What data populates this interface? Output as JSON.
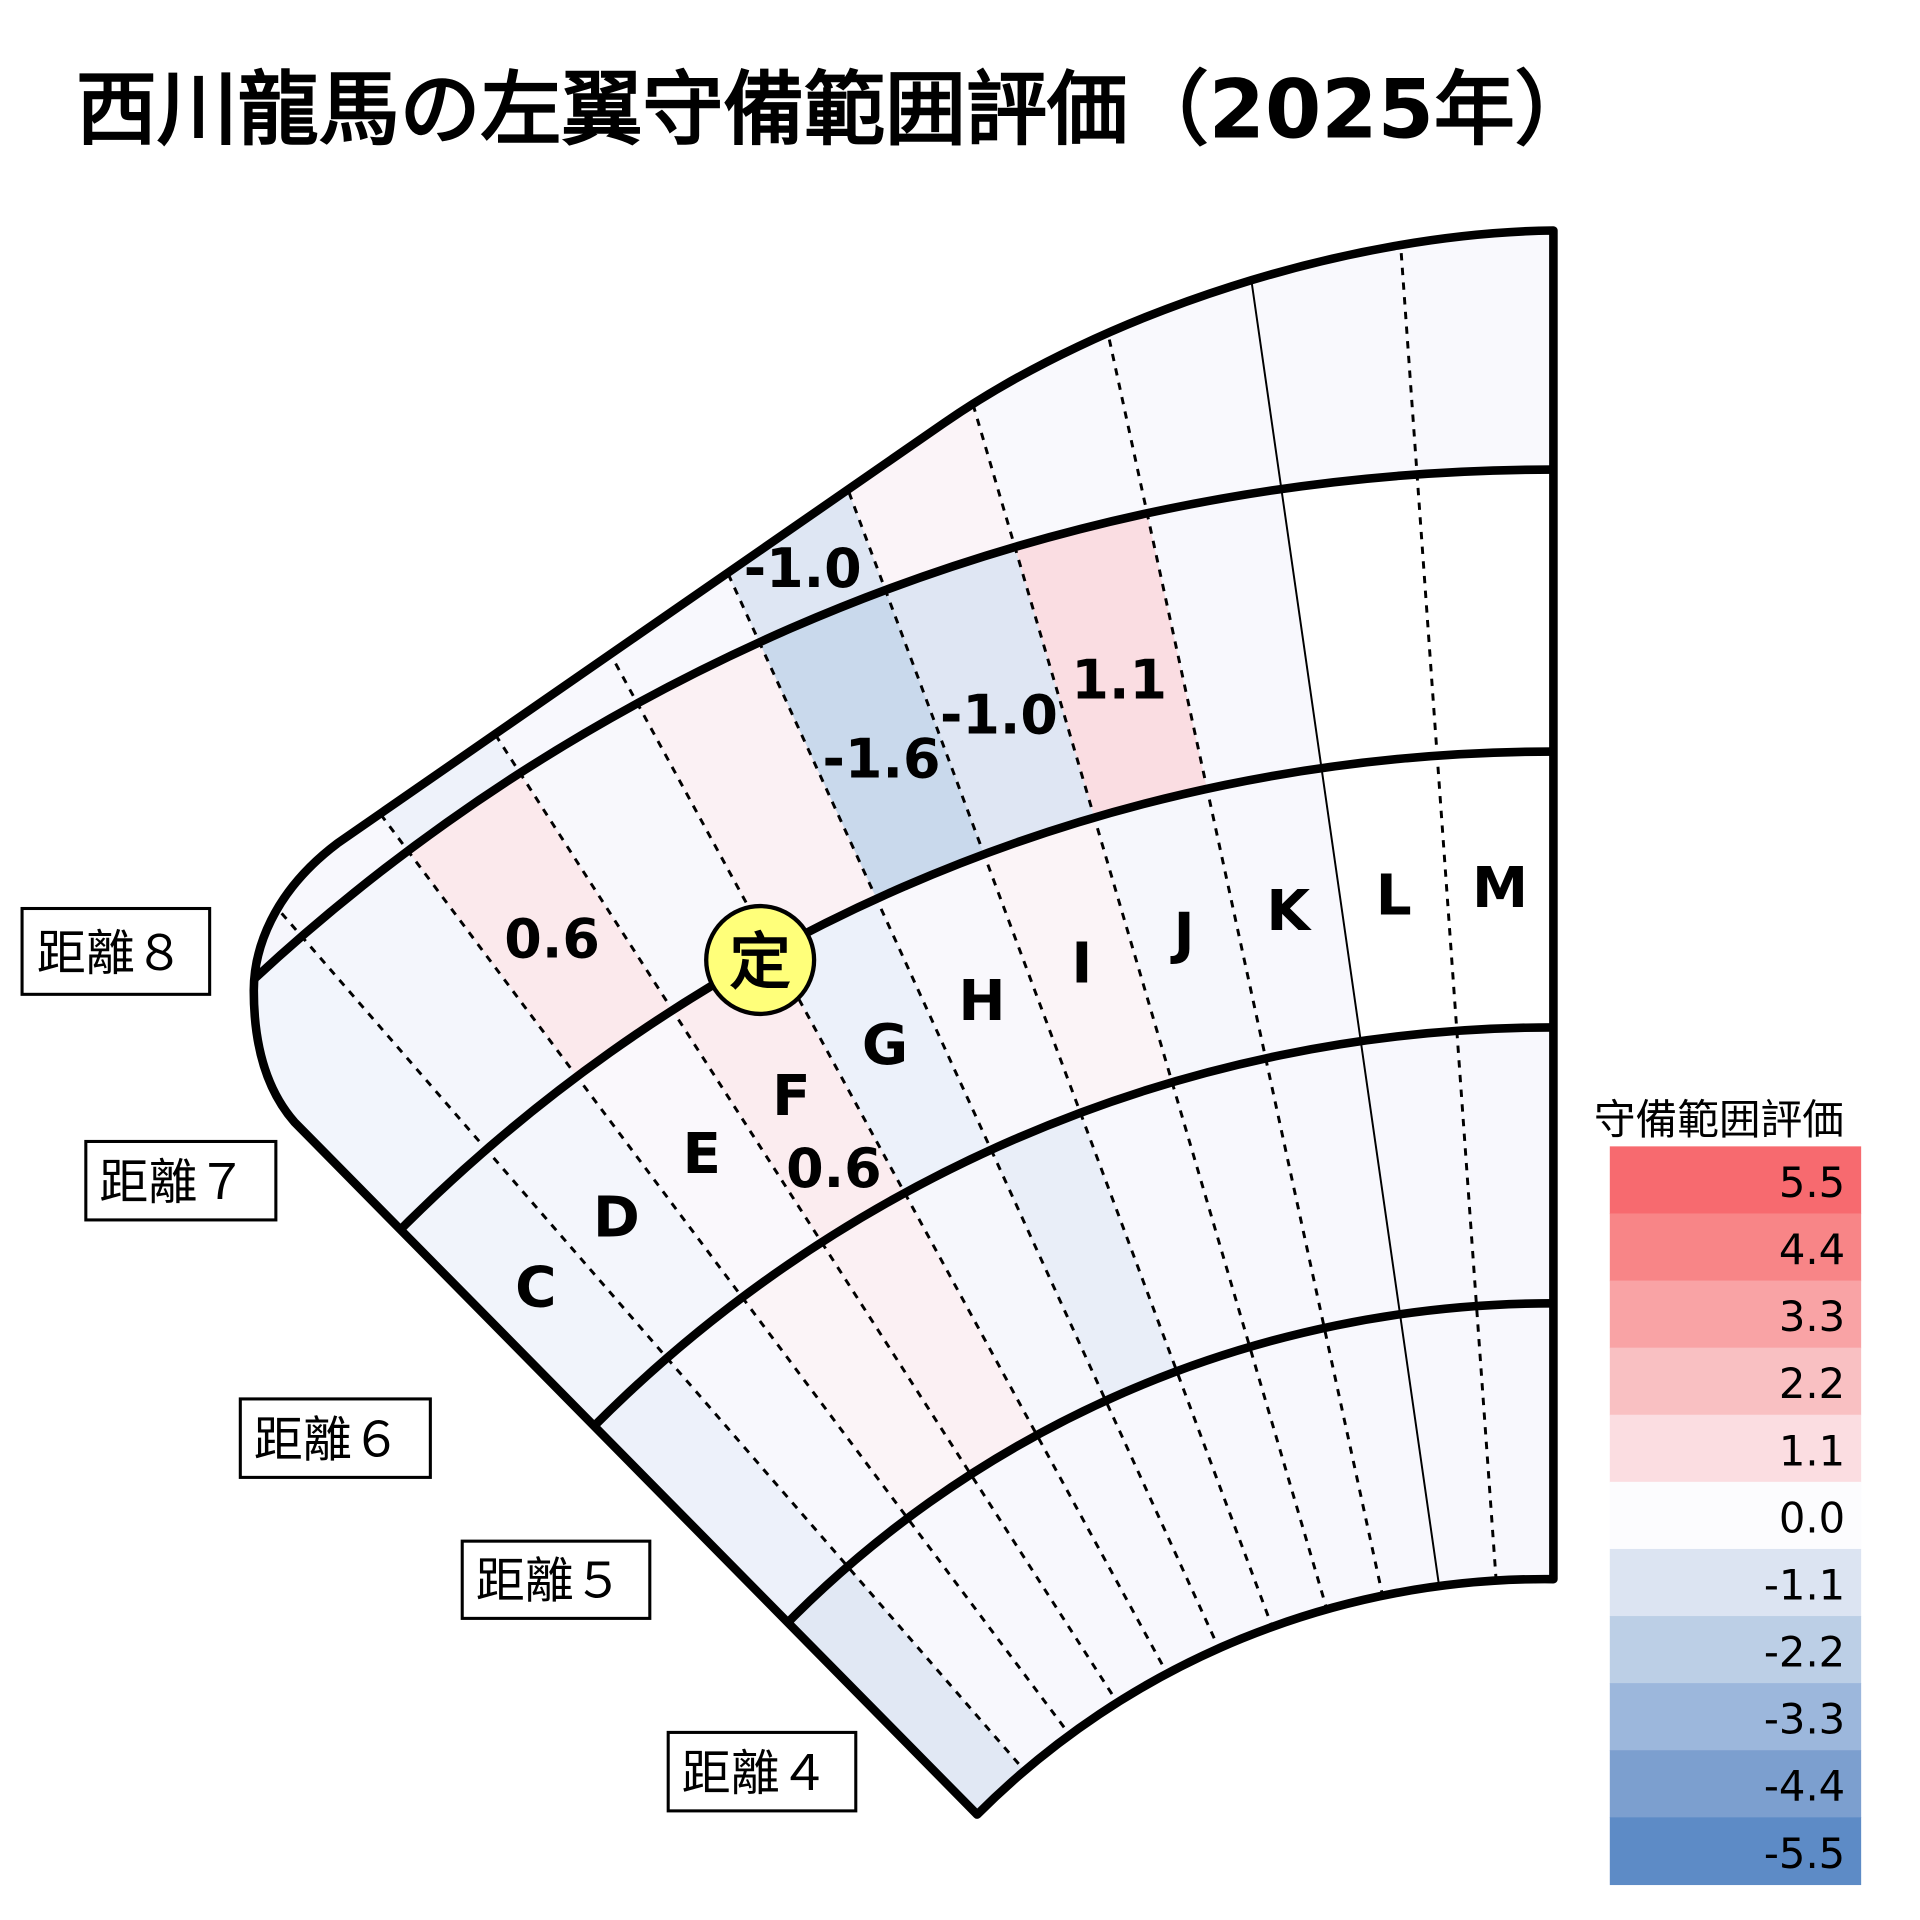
{
  "title": "西川龍馬の左翼守備範囲評価（2025年）",
  "columns": [
    "C",
    "D",
    "E",
    "F",
    "G",
    "H",
    "I",
    "J",
    "K",
    "L",
    "M"
  ],
  "distance_labels": [
    "距離４",
    "距離５",
    "距離６",
    "距離７",
    "距離８"
  ],
  "cell_colors": [
    [
      "#e1e8f4",
      "#f8f8fd",
      "#f8f8fd",
      "#f8f8fd",
      "#f8f8fd",
      "#f8f8fd",
      "#f8f8fd",
      "#f8f8fd",
      "#f8f8fd",
      "#f8f8fd",
      "#f8f8fd"
    ],
    [
      "#edf1fa",
      "#f8f8fd",
      "#fbf4f7",
      "#fbf0f3",
      "#f6f7fc",
      "#e9eef8",
      "#f8f8fd",
      "#f8f8fd",
      "#f8f8fd",
      "#f8f8fd",
      "#f8f8fd"
    ],
    [
      "#f1f4fb",
      "#f4f6fc",
      "#faf8fc",
      "#fbecef",
      "#ecf1fa",
      "#f9f8fc",
      "#fbf4f7",
      "#f6f7fc",
      "#f8f8fd",
      "#ffffff",
      "#ffffff"
    ],
    [
      "#f2f5fc",
      "#f4f6fc",
      "#fbe9ec",
      "#f8f8fc",
      "#fbf1f4",
      "#c9d9ec",
      "#dfe6f3",
      "#fadde2",
      "#f8f8fd",
      "#ffffff",
      "#ffffff"
    ],
    [
      "#f6f6fc",
      "#f8f8fd",
      "#eef2fa",
      "#f8f8fd",
      "#f8f8fd",
      "#dee6f3",
      "#fbf4f8",
      "#f9f9fd",
      "#f9f9fd",
      "#f9f9fd",
      "#f9f9fd"
    ]
  ],
  "values": [
    {
      "row": 4,
      "col": "H",
      "text": "-1.0"
    },
    {
      "row": 3,
      "col": "E",
      "text": "0.6"
    },
    {
      "row": 3,
      "col": "H",
      "text": "-1.6"
    },
    {
      "row": 3,
      "col": "I",
      "text": "-1.0"
    },
    {
      "row": 3,
      "col": "J",
      "text": "1.1"
    },
    {
      "row": 2,
      "col": "F",
      "text": "0.6"
    }
  ],
  "marker": {
    "text": "定",
    "color": "#ffff7a"
  },
  "legend": {
    "title": "守備範囲評価",
    "items": [
      {
        "label": "5.5",
        "color": "#f76a6f"
      },
      {
        "label": "4.4",
        "color": "#f88587"
      },
      {
        "label": "3.3",
        "color": "#f9a3a5"
      },
      {
        "label": "2.2",
        "color": "#f9c0c2"
      },
      {
        "label": "1.1",
        "color": "#fbdde1"
      },
      {
        "label": "0.0",
        "color": "#fcfcfe"
      },
      {
        "label": "-1.1",
        "color": "#dce4f2"
      },
      {
        "label": "-2.2",
        "color": "#bccfe6"
      },
      {
        "label": "-3.3",
        "color": "#9cb7dc"
      },
      {
        "label": "-4.4",
        "color": "#7c9fcf"
      },
      {
        "label": "-5.5",
        "color": "#5d8bc6"
      }
    ]
  }
}
